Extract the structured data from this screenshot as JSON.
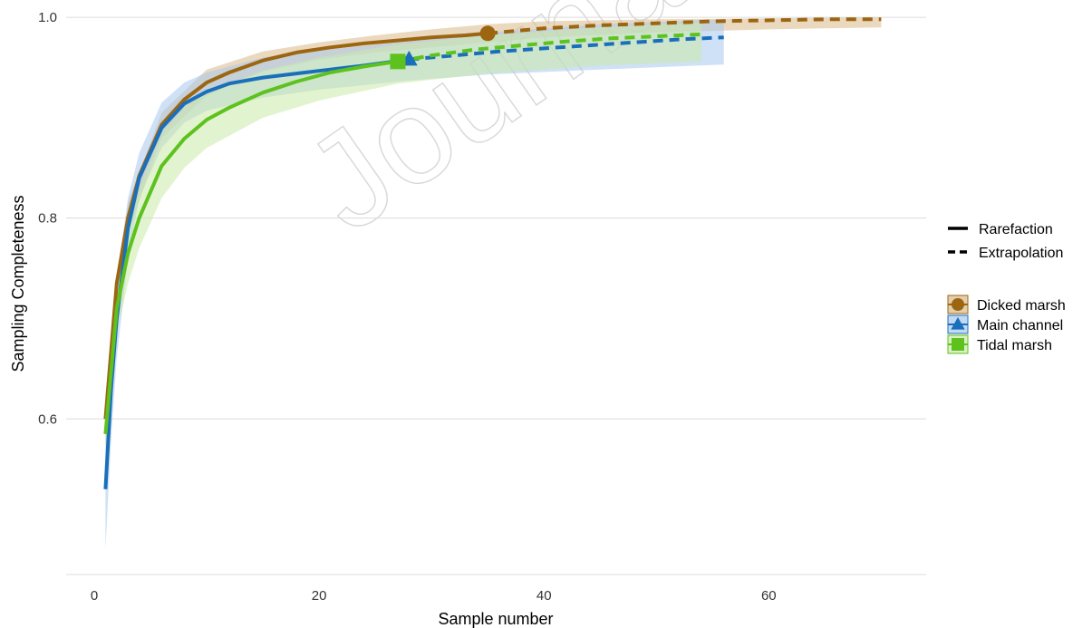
{
  "watermark_text": "Journal",
  "chart_data": {
    "type": "line",
    "xlabel": "Sample number",
    "ylabel": "Sampling Completeness",
    "xlim": [
      -2.5,
      74
    ],
    "ylim": [
      0.445,
      1.01
    ],
    "x_ticks": [
      0,
      20,
      40,
      60
    ],
    "x_tick_labels": [
      "0",
      "20",
      "40",
      "60"
    ],
    "y_ticks": [
      0.6,
      0.8,
      1.0
    ],
    "y_tick_labels": [
      "0.6",
      "0.8",
      "1.0"
    ],
    "grid": "horizontal",
    "legend_position": "right",
    "method_legend": [
      {
        "label": "Rarefaction",
        "style": "solid"
      },
      {
        "label": "Extrapolation",
        "style": "dashed"
      }
    ],
    "series": [
      {
        "name": "Dicked marsh",
        "color": "#9c6611",
        "band_color": "#d9b98a",
        "marker": "circle",
        "observed": [
          35,
          0.984
        ],
        "rarefaction": {
          "x": [
            1,
            2,
            3,
            4,
            6,
            8,
            10,
            12,
            15,
            18,
            21,
            24,
            27,
            30,
            33,
            35
          ],
          "y": [
            0.6,
            0.735,
            0.8,
            0.842,
            0.893,
            0.918,
            0.935,
            0.945,
            0.957,
            0.965,
            0.97,
            0.974,
            0.977,
            0.98,
            0.982,
            0.984
          ]
        },
        "extrapolation": {
          "x": [
            35,
            40,
            45,
            50,
            55,
            60,
            65,
            70
          ],
          "y": [
            0.984,
            0.989,
            0.992,
            0.994,
            0.996,
            0.997,
            0.998,
            0.998
          ]
        },
        "band": {
          "x": [
            1,
            3,
            6,
            10,
            15,
            20,
            25,
            30,
            35,
            40,
            50,
            60,
            70
          ],
          "lower": [
            0.575,
            0.785,
            0.88,
            0.922,
            0.946,
            0.958,
            0.965,
            0.97,
            0.975,
            0.98,
            0.985,
            0.988,
            0.99
          ],
          "upper": [
            0.625,
            0.815,
            0.905,
            0.948,
            0.966,
            0.975,
            0.982,
            0.988,
            0.993,
            0.996,
            0.998,
            0.999,
            1.0
          ]
        }
      },
      {
        "name": "Main channel",
        "color": "#1a6fba",
        "band_color": "#a8c8ee",
        "marker": "triangle",
        "observed": [
          28,
          0.958
        ],
        "rarefaction": {
          "x": [
            1,
            1.5,
            2,
            3,
            4,
            6,
            8,
            10,
            12,
            15,
            18,
            21,
            24,
            28
          ],
          "y": [
            0.53,
            0.63,
            0.7,
            0.79,
            0.84,
            0.89,
            0.914,
            0.926,
            0.934,
            0.94,
            0.944,
            0.948,
            0.952,
            0.958
          ]
        },
        "extrapolation": {
          "x": [
            28,
            32,
            36,
            40,
            44,
            48,
            52,
            56
          ],
          "y": [
            0.958,
            0.962,
            0.966,
            0.969,
            0.972,
            0.975,
            0.978,
            0.98
          ]
        },
        "band": {
          "x": [
            1,
            1.5,
            2,
            3,
            4,
            6,
            8,
            10,
            15,
            20,
            28,
            35,
            45,
            56
          ],
          "lower": [
            0.47,
            0.58,
            0.66,
            0.76,
            0.82,
            0.87,
            0.895,
            0.907,
            0.92,
            0.928,
            0.937,
            0.943,
            0.948,
            0.953
          ],
          "upper": [
            0.59,
            0.68,
            0.74,
            0.82,
            0.865,
            0.915,
            0.935,
            0.945,
            0.96,
            0.967,
            0.976,
            0.985,
            0.993,
            0.998
          ]
        }
      },
      {
        "name": "Tidal marsh",
        "color": "#5dc21e",
        "band_color": "#cbeaa8",
        "marker": "square",
        "observed": [
          27,
          0.956
        ],
        "rarefaction": {
          "x": [
            1,
            2,
            3,
            4,
            6,
            8,
            10,
            12,
            15,
            18,
            21,
            24,
            27
          ],
          "y": [
            0.585,
            0.71,
            0.765,
            0.8,
            0.852,
            0.879,
            0.898,
            0.91,
            0.925,
            0.936,
            0.945,
            0.951,
            0.956
          ]
        },
        "extrapolation": {
          "x": [
            27,
            30,
            34,
            38,
            42,
            46,
            50,
            54
          ],
          "y": [
            0.956,
            0.962,
            0.968,
            0.972,
            0.976,
            0.979,
            0.981,
            0.983
          ]
        },
        "band": {
          "x": [
            1,
            2,
            3,
            4,
            6,
            8,
            10,
            15,
            20,
            27,
            35,
            45,
            54
          ],
          "lower": [
            0.57,
            0.685,
            0.735,
            0.77,
            0.82,
            0.85,
            0.87,
            0.9,
            0.917,
            0.934,
            0.944,
            0.952,
            0.956
          ],
          "upper": [
            0.6,
            0.735,
            0.795,
            0.83,
            0.885,
            0.91,
            0.926,
            0.947,
            0.96,
            0.973,
            0.982,
            0.99,
            0.995
          ]
        }
      }
    ]
  }
}
